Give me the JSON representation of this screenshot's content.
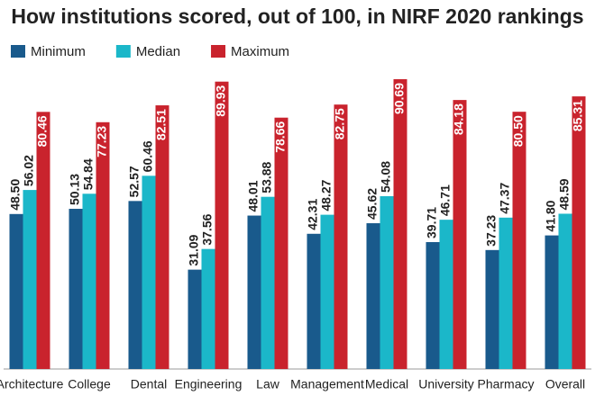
{
  "chart_data": {
    "type": "bar",
    "title": "How institutions scored, out of 100, in NIRF 2020 rankings",
    "categories": [
      "Architecture",
      "College",
      "Dental",
      "Engineering",
      "Law",
      "Management",
      "Medical",
      "University",
      "Pharmacy",
      "Overall"
    ],
    "series": [
      {
        "name": "Minimum",
        "color": "#195a8c",
        "values": [
          48.5,
          50.13,
          52.57,
          31.09,
          48.01,
          42.31,
          45.62,
          39.71,
          37.23,
          41.8
        ],
        "value_labels": [
          "48.50",
          "50.13",
          "52.57",
          "31.09",
          "48.01",
          "42.31",
          "45.62",
          "39.71",
          "37.23",
          "41.80"
        ]
      },
      {
        "name": "Median",
        "color": "#1bb7c9",
        "values": [
          56.02,
          54.84,
          60.46,
          37.56,
          53.88,
          48.27,
          54.08,
          46.71,
          47.37,
          48.59
        ],
        "value_labels": [
          "56.02",
          "54.84",
          "60.46",
          "37.56",
          "53.88",
          "48.27",
          "54.08",
          "46.71",
          "47.37",
          "48.59"
        ]
      },
      {
        "name": "Maximum",
        "color": "#c9232d",
        "values": [
          80.46,
          77.23,
          82.51,
          89.93,
          78.66,
          82.75,
          90.69,
          84.18,
          80.5,
          85.31
        ],
        "value_labels": [
          "80.46",
          "77.23",
          "82.51",
          "89.93",
          "78.66",
          "82.75",
          "90.69",
          "84.18",
          "80.50",
          "85.31"
        ]
      }
    ]
  }
}
